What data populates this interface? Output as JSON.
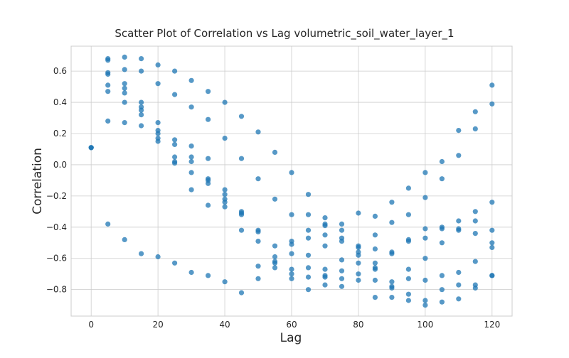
{
  "chart_data": {
    "type": "scatter",
    "title": "Scatter Plot of Correlation vs Lag volumetric_soil_water_layer_1",
    "xlabel": "Lag",
    "ylabel": "Correlation",
    "xlim": [
      -6,
      126
    ],
    "ylim": [
      -0.97,
      0.76
    ],
    "xticks": [
      0,
      20,
      40,
      60,
      80,
      100,
      120
    ],
    "yticks": [
      -0.8,
      -0.6,
      -0.4,
      -0.2,
      0.0,
      0.2,
      0.4,
      0.6
    ],
    "xtick_labels": [
      "0",
      "20",
      "40",
      "60",
      "80",
      "100",
      "120"
    ],
    "ytick_labels": [
      "−0.8",
      "−0.6",
      "−0.4",
      "−0.2",
      "0.0",
      "0.2",
      "0.4",
      "0.6"
    ],
    "grid": true,
    "color": "#1f77b4",
    "points": [
      [
        0,
        0.11
      ],
      [
        0,
        0.11
      ],
      [
        0,
        0.11
      ],
      [
        5,
        0.68
      ],
      [
        5,
        0.67
      ],
      [
        5,
        0.59
      ],
      [
        5,
        0.58
      ],
      [
        5,
        0.51
      ],
      [
        5,
        0.47
      ],
      [
        5,
        0.28
      ],
      [
        5,
        -0.38
      ],
      [
        10,
        0.69
      ],
      [
        10,
        0.61
      ],
      [
        10,
        0.52
      ],
      [
        10,
        0.49
      ],
      [
        10,
        0.46
      ],
      [
        10,
        0.4
      ],
      [
        10,
        0.27
      ],
      [
        10,
        -0.48
      ],
      [
        15,
        0.68
      ],
      [
        15,
        0.6
      ],
      [
        15,
        0.4
      ],
      [
        15,
        0.37
      ],
      [
        15,
        0.35
      ],
      [
        15,
        0.32
      ],
      [
        15,
        0.25
      ],
      [
        15,
        -0.57
      ],
      [
        20,
        0.64
      ],
      [
        20,
        0.52
      ],
      [
        20,
        0.27
      ],
      [
        20,
        0.22
      ],
      [
        20,
        0.2
      ],
      [
        20,
        0.17
      ],
      [
        20,
        0.15
      ],
      [
        20,
        -0.59
      ],
      [
        25,
        0.6
      ],
      [
        25,
        0.45
      ],
      [
        25,
        0.16
      ],
      [
        25,
        0.13
      ],
      [
        25,
        0.05
      ],
      [
        25,
        0.02
      ],
      [
        25,
        0.01
      ],
      [
        25,
        -0.63
      ],
      [
        30,
        0.54
      ],
      [
        30,
        0.37
      ],
      [
        30,
        0.12
      ],
      [
        30,
        0.05
      ],
      [
        30,
        0.02
      ],
      [
        30,
        -0.05
      ],
      [
        30,
        -0.16
      ],
      [
        30,
        -0.69
      ],
      [
        35,
        0.47
      ],
      [
        35,
        0.29
      ],
      [
        35,
        0.04
      ],
      [
        35,
        -0.09
      ],
      [
        35,
        -0.1
      ],
      [
        35,
        -0.12
      ],
      [
        35,
        -0.26
      ],
      [
        35,
        -0.71
      ],
      [
        40,
        0.4
      ],
      [
        40,
        0.17
      ],
      [
        40,
        -0.16
      ],
      [
        40,
        -0.19
      ],
      [
        40,
        -0.22
      ],
      [
        40,
        -0.24
      ],
      [
        40,
        -0.27
      ],
      [
        40,
        -0.75
      ],
      [
        45,
        0.31
      ],
      [
        45,
        0.04
      ],
      [
        45,
        -0.3
      ],
      [
        45,
        -0.31
      ],
      [
        45,
        -0.32
      ],
      [
        45,
        -0.42
      ],
      [
        45,
        -0.82
      ],
      [
        50,
        0.21
      ],
      [
        50,
        -0.09
      ],
      [
        50,
        -0.42
      ],
      [
        50,
        -0.43
      ],
      [
        50,
        -0.49
      ],
      [
        50,
        -0.65
      ],
      [
        50,
        -0.73
      ],
      [
        55,
        0.08
      ],
      [
        55,
        -0.22
      ],
      [
        55,
        -0.52
      ],
      [
        55,
        -0.59
      ],
      [
        55,
        -0.62
      ],
      [
        55,
        -0.63
      ],
      [
        55,
        -0.66
      ],
      [
        60,
        -0.05
      ],
      [
        60,
        -0.32
      ],
      [
        60,
        -0.49
      ],
      [
        60,
        -0.51
      ],
      [
        60,
        -0.57
      ],
      [
        60,
        -0.67
      ],
      [
        60,
        -0.7
      ],
      [
        60,
        -0.73
      ],
      [
        65,
        -0.19
      ],
      [
        65,
        -0.32
      ],
      [
        65,
        -0.42
      ],
      [
        65,
        -0.47
      ],
      [
        65,
        -0.58
      ],
      [
        65,
        -0.66
      ],
      [
        65,
        -0.72
      ],
      [
        65,
        -0.8
      ],
      [
        70,
        -0.34
      ],
      [
        70,
        -0.38
      ],
      [
        70,
        -0.39
      ],
      [
        70,
        -0.45
      ],
      [
        70,
        -0.52
      ],
      [
        70,
        -0.67
      ],
      [
        70,
        -0.71
      ],
      [
        70,
        -0.72
      ],
      [
        70,
        -0.77
      ],
      [
        75,
        -0.38
      ],
      [
        75,
        -0.42
      ],
      [
        75,
        -0.47
      ],
      [
        75,
        -0.49
      ],
      [
        75,
        -0.61
      ],
      [
        75,
        -0.68
      ],
      [
        75,
        -0.73
      ],
      [
        75,
        -0.78
      ],
      [
        80,
        -0.31
      ],
      [
        80,
        -0.52
      ],
      [
        80,
        -0.53
      ],
      [
        80,
        -0.56
      ],
      [
        80,
        -0.58
      ],
      [
        80,
        -0.63
      ],
      [
        80,
        -0.7
      ],
      [
        80,
        -0.74
      ],
      [
        85,
        -0.33
      ],
      [
        85,
        -0.45
      ],
      [
        85,
        -0.54
      ],
      [
        85,
        -0.63
      ],
      [
        85,
        -0.66
      ],
      [
        85,
        -0.67
      ],
      [
        85,
        -0.74
      ],
      [
        85,
        -0.85
      ],
      [
        90,
        -0.24
      ],
      [
        90,
        -0.37
      ],
      [
        90,
        -0.56
      ],
      [
        90,
        -0.57
      ],
      [
        90,
        -0.75
      ],
      [
        90,
        -0.78
      ],
      [
        90,
        -0.79
      ],
      [
        90,
        -0.85
      ],
      [
        95,
        -0.15
      ],
      [
        95,
        -0.32
      ],
      [
        95,
        -0.48
      ],
      [
        95,
        -0.49
      ],
      [
        95,
        -0.67
      ],
      [
        95,
        -0.73
      ],
      [
        95,
        -0.83
      ],
      [
        95,
        -0.87
      ],
      [
        100,
        -0.05
      ],
      [
        100,
        -0.21
      ],
      [
        100,
        -0.41
      ],
      [
        100,
        -0.47
      ],
      [
        100,
        -0.6
      ],
      [
        100,
        -0.74
      ],
      [
        100,
        -0.87
      ],
      [
        100,
        -0.9
      ],
      [
        105,
        0.02
      ],
      [
        105,
        -0.09
      ],
      [
        105,
        -0.4
      ],
      [
        105,
        -0.41
      ],
      [
        105,
        -0.5
      ],
      [
        105,
        -0.71
      ],
      [
        105,
        -0.8
      ],
      [
        105,
        -0.88
      ],
      [
        110,
        0.22
      ],
      [
        110,
        0.06
      ],
      [
        110,
        -0.36
      ],
      [
        110,
        -0.41
      ],
      [
        110,
        -0.42
      ],
      [
        110,
        -0.69
      ],
      [
        110,
        -0.77
      ],
      [
        110,
        -0.86
      ],
      [
        115,
        0.34
      ],
      [
        115,
        0.23
      ],
      [
        115,
        -0.3
      ],
      [
        115,
        -0.36
      ],
      [
        115,
        -0.44
      ],
      [
        115,
        -0.62
      ],
      [
        115,
        -0.77
      ],
      [
        115,
        -0.79
      ],
      [
        120,
        0.51
      ],
      [
        120,
        0.39
      ],
      [
        120,
        -0.24
      ],
      [
        120,
        -0.42
      ],
      [
        120,
        -0.5
      ],
      [
        120,
        -0.53
      ],
      [
        120,
        -0.71
      ],
      [
        120,
        -0.71
      ]
    ]
  }
}
